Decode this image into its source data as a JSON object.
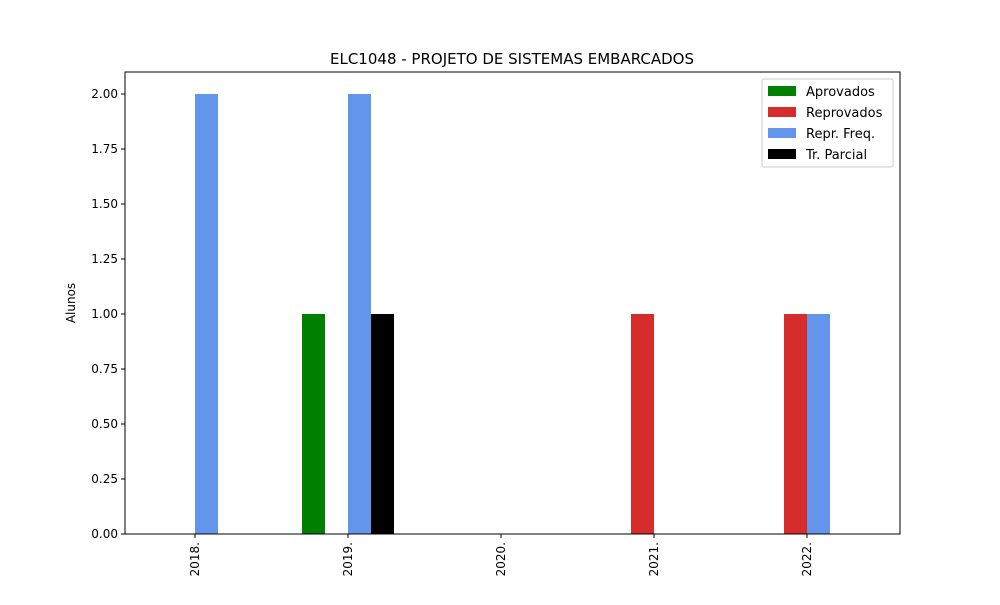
{
  "chart_data": {
    "type": "bar",
    "title": "ELC1048 - PROJETO DE SISTEMAS EMBARCADOS",
    "xlabel": "",
    "ylabel": "Alunos",
    "categories": [
      "2018.",
      "2019.",
      "2020.",
      "2021.",
      "2022."
    ],
    "series": [
      {
        "name": "Aprovados",
        "color": "#008000",
        "values": [
          0,
          1,
          0,
          0,
          0
        ]
      },
      {
        "name": "Reprovados",
        "color": "#d62c2c",
        "values": [
          0,
          0,
          0,
          1,
          1
        ]
      },
      {
        "name": "Repr. Freq.",
        "color": "#6495ed",
        "values": [
          2,
          2,
          0,
          0,
          1
        ]
      },
      {
        "name": "Tr. Parcial",
        "color": "#000000",
        "values": [
          0,
          1,
          0,
          0,
          0
        ]
      }
    ],
    "ylim": [
      0,
      2.1
    ],
    "yticks": [
      "0.00",
      "0.25",
      "0.50",
      "0.75",
      "1.00",
      "1.25",
      "1.50",
      "1.75",
      "2.00"
    ],
    "legend": "top-right",
    "grid": false
  }
}
